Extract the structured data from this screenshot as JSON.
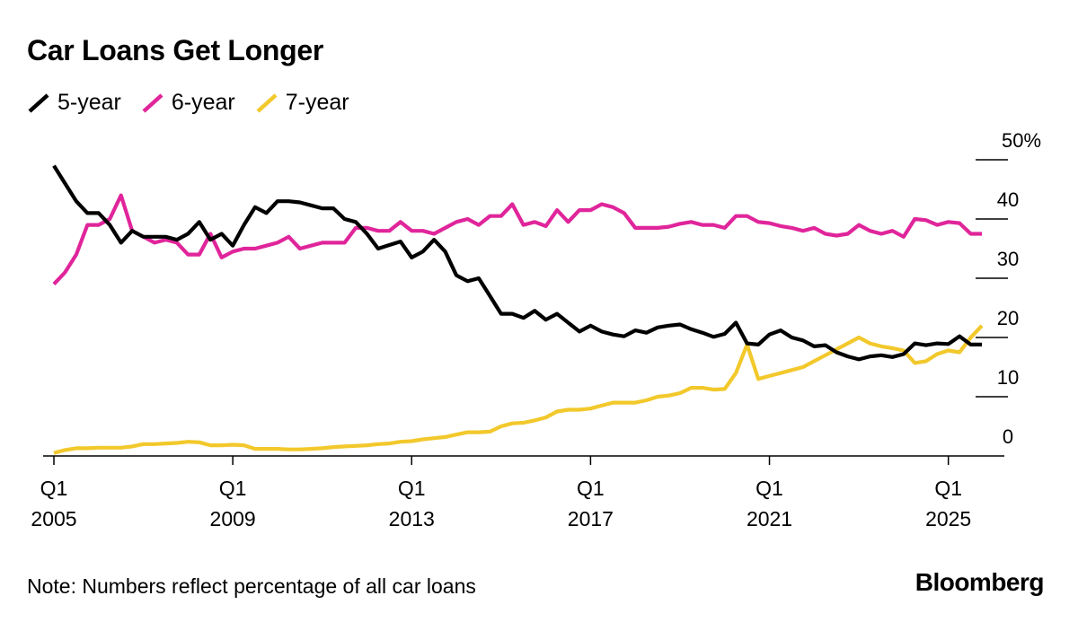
{
  "title": "Car Loans Get Longer",
  "note": "Note: Numbers reflect percentage of all car loans",
  "brand": "Bloomberg",
  "chart_data": {
    "type": "line",
    "title": "Car Loans Get Longer",
    "xlabel": "",
    "ylabel": "",
    "ylim": [
      0,
      50
    ],
    "xlim": [
      2005.0,
      2025.75
    ],
    "y_ticks": [
      0,
      10,
      20,
      30,
      40,
      50
    ],
    "y_tick_labels": [
      "0",
      "10",
      "20",
      "30",
      "40",
      "50%"
    ],
    "x_ticks": [
      {
        "year": 2005,
        "quarter": "Q1",
        "label": "2005"
      },
      {
        "year": 2009,
        "quarter": "Q1",
        "label": "2009"
      },
      {
        "year": 2013,
        "quarter": "Q1",
        "label": "2013"
      },
      {
        "year": 2017,
        "quarter": "Q1",
        "label": "2017"
      },
      {
        "year": 2021,
        "quarter": "Q1",
        "label": "2021"
      },
      {
        "year": 2025,
        "quarter": "Q1",
        "label": "2025"
      }
    ],
    "legend_position": "top-left",
    "series": [
      {
        "name": "5-year",
        "color": "#000000",
        "points": [
          [
            2005.0,
            49
          ],
          [
            2005.25,
            46
          ],
          [
            2005.5,
            43
          ],
          [
            2005.75,
            41
          ],
          [
            2006.0,
            41
          ],
          [
            2006.25,
            39
          ],
          [
            2006.5,
            36
          ],
          [
            2006.75,
            38
          ],
          [
            2007.0,
            37
          ],
          [
            2007.25,
            37
          ],
          [
            2007.5,
            37
          ],
          [
            2007.75,
            36.5
          ],
          [
            2008.0,
            37.5
          ],
          [
            2008.25,
            39.5
          ],
          [
            2008.5,
            36.5
          ],
          [
            2008.75,
            37.5
          ],
          [
            2009.0,
            35.5
          ],
          [
            2009.25,
            39
          ],
          [
            2009.5,
            42
          ],
          [
            2009.75,
            41
          ],
          [
            2010.0,
            43
          ],
          [
            2010.25,
            43
          ],
          [
            2010.5,
            42.8
          ],
          [
            2010.75,
            42.3
          ],
          [
            2011.0,
            41.8
          ],
          [
            2011.25,
            41.8
          ],
          [
            2011.5,
            40
          ],
          [
            2011.75,
            39.5
          ],
          [
            2012.0,
            37.5
          ],
          [
            2012.25,
            35
          ],
          [
            2012.5,
            35.6
          ],
          [
            2012.75,
            36.2
          ],
          [
            2013.0,
            33.5
          ],
          [
            2013.25,
            34.5
          ],
          [
            2013.5,
            36.5
          ],
          [
            2013.75,
            34.5
          ],
          [
            2014.0,
            30.5
          ],
          [
            2014.25,
            29.5
          ],
          [
            2014.5,
            30
          ],
          [
            2014.75,
            27
          ],
          [
            2015.0,
            24
          ],
          [
            2015.25,
            24
          ],
          [
            2015.5,
            23.3
          ],
          [
            2015.75,
            24.5
          ],
          [
            2016.0,
            23
          ],
          [
            2016.25,
            24
          ],
          [
            2016.5,
            22.5
          ],
          [
            2016.75,
            21
          ],
          [
            2017.0,
            22
          ],
          [
            2017.25,
            21
          ],
          [
            2017.5,
            20.5
          ],
          [
            2017.75,
            20.2
          ],
          [
            2018.0,
            21.2
          ],
          [
            2018.25,
            20.8
          ],
          [
            2018.5,
            21.7
          ],
          [
            2018.75,
            22
          ],
          [
            2019.0,
            22.2
          ],
          [
            2019.25,
            21.4
          ],
          [
            2019.5,
            20.8
          ],
          [
            2019.75,
            20.1
          ],
          [
            2020.0,
            20.6
          ],
          [
            2020.25,
            22.5
          ],
          [
            2020.5,
            19
          ],
          [
            2020.75,
            18.8
          ],
          [
            2021.0,
            20.5
          ],
          [
            2021.25,
            21.2
          ],
          [
            2021.5,
            20
          ],
          [
            2021.75,
            19.5
          ],
          [
            2022.0,
            18.5
          ],
          [
            2022.25,
            18.7
          ],
          [
            2022.5,
            17.5
          ],
          [
            2022.75,
            16.8
          ],
          [
            2023.0,
            16.3
          ],
          [
            2023.25,
            16.8
          ],
          [
            2023.5,
            17
          ],
          [
            2023.75,
            16.7
          ],
          [
            2024.0,
            17.2
          ],
          [
            2024.25,
            19
          ],
          [
            2024.5,
            18.7
          ],
          [
            2024.75,
            19
          ],
          [
            2025.0,
            18.9
          ],
          [
            2025.25,
            20.2
          ],
          [
            2025.5,
            18.8
          ],
          [
            2025.75,
            18.8
          ]
        ]
      },
      {
        "name": "6-year",
        "color": "#e0259b",
        "points": [
          [
            2005.0,
            29
          ],
          [
            2005.25,
            31
          ],
          [
            2005.5,
            34
          ],
          [
            2005.75,
            39
          ],
          [
            2006.0,
            39
          ],
          [
            2006.25,
            40
          ],
          [
            2006.5,
            44
          ],
          [
            2006.75,
            38
          ],
          [
            2007.0,
            37
          ],
          [
            2007.25,
            36
          ],
          [
            2007.5,
            36.5
          ],
          [
            2007.75,
            36
          ],
          [
            2008.0,
            34
          ],
          [
            2008.25,
            34
          ],
          [
            2008.5,
            37.5
          ],
          [
            2008.75,
            33.5
          ],
          [
            2009.0,
            34.5
          ],
          [
            2009.25,
            35
          ],
          [
            2009.5,
            35
          ],
          [
            2009.75,
            35.5
          ],
          [
            2010.0,
            36
          ],
          [
            2010.25,
            37
          ],
          [
            2010.5,
            35
          ],
          [
            2010.75,
            35.5
          ],
          [
            2011.0,
            36
          ],
          [
            2011.25,
            36
          ],
          [
            2011.5,
            36
          ],
          [
            2011.75,
            38.5
          ],
          [
            2012.0,
            38.5
          ],
          [
            2012.25,
            38
          ],
          [
            2012.5,
            38
          ],
          [
            2012.75,
            39.5
          ],
          [
            2013.0,
            38
          ],
          [
            2013.25,
            38
          ],
          [
            2013.5,
            37.5
          ],
          [
            2013.75,
            38.5
          ],
          [
            2014.0,
            39.5
          ],
          [
            2014.25,
            40
          ],
          [
            2014.5,
            39
          ],
          [
            2014.75,
            40.5
          ],
          [
            2015.0,
            40.5
          ],
          [
            2015.25,
            42.5
          ],
          [
            2015.5,
            39
          ],
          [
            2015.75,
            39.5
          ],
          [
            2016.0,
            38.8
          ],
          [
            2016.25,
            41.5
          ],
          [
            2016.5,
            39.5
          ],
          [
            2016.75,
            41.5
          ],
          [
            2017.0,
            41.5
          ],
          [
            2017.25,
            42.5
          ],
          [
            2017.5,
            42
          ],
          [
            2017.75,
            41
          ],
          [
            2018.0,
            38.5
          ],
          [
            2018.25,
            38.5
          ],
          [
            2018.5,
            38.5
          ],
          [
            2018.75,
            38.7
          ],
          [
            2019.0,
            39.2
          ],
          [
            2019.25,
            39.5
          ],
          [
            2019.5,
            39
          ],
          [
            2019.75,
            39
          ],
          [
            2020.0,
            38.5
          ],
          [
            2020.25,
            40.5
          ],
          [
            2020.5,
            40.5
          ],
          [
            2020.75,
            39.5
          ],
          [
            2021.0,
            39.3
          ],
          [
            2021.25,
            38.8
          ],
          [
            2021.5,
            38.5
          ],
          [
            2021.75,
            38
          ],
          [
            2022.0,
            38.5
          ],
          [
            2022.25,
            37.5
          ],
          [
            2022.5,
            37.2
          ],
          [
            2022.75,
            37.5
          ],
          [
            2023.0,
            39
          ],
          [
            2023.25,
            38
          ],
          [
            2023.5,
            37.5
          ],
          [
            2023.75,
            38
          ],
          [
            2024.0,
            37
          ],
          [
            2024.25,
            40
          ],
          [
            2024.5,
            39.8
          ],
          [
            2024.75,
            39
          ],
          [
            2025.0,
            39.5
          ],
          [
            2025.25,
            39.3
          ],
          [
            2025.5,
            37.5
          ],
          [
            2025.75,
            37.5
          ]
        ]
      },
      {
        "name": "7-year",
        "color": "#f2c82b",
        "points": [
          [
            2005.0,
            0.5
          ],
          [
            2005.25,
            1
          ],
          [
            2005.5,
            1.3
          ],
          [
            2005.75,
            1.3
          ],
          [
            2006.0,
            1.4
          ],
          [
            2006.25,
            1.4
          ],
          [
            2006.5,
            1.4
          ],
          [
            2006.75,
            1.6
          ],
          [
            2007.0,
            2
          ],
          [
            2007.25,
            2
          ],
          [
            2007.5,
            2.1
          ],
          [
            2007.75,
            2.2
          ],
          [
            2008.0,
            2.4
          ],
          [
            2008.25,
            2.3
          ],
          [
            2008.5,
            1.8
          ],
          [
            2008.75,
            1.8
          ],
          [
            2009.0,
            1.9
          ],
          [
            2009.25,
            1.8
          ],
          [
            2009.5,
            1.2
          ],
          [
            2009.75,
            1.2
          ],
          [
            2010.0,
            1.2
          ],
          [
            2010.25,
            1.1
          ],
          [
            2010.5,
            1.1
          ],
          [
            2010.75,
            1.2
          ],
          [
            2011.0,
            1.3
          ],
          [
            2011.25,
            1.5
          ],
          [
            2011.5,
            1.6
          ],
          [
            2011.75,
            1.7
          ],
          [
            2012.0,
            1.8
          ],
          [
            2012.25,
            2
          ],
          [
            2012.5,
            2.1
          ],
          [
            2012.75,
            2.4
          ],
          [
            2013.0,
            2.5
          ],
          [
            2013.25,
            2.8
          ],
          [
            2013.5,
            3
          ],
          [
            2013.75,
            3.2
          ],
          [
            2014.0,
            3.6
          ],
          [
            2014.25,
            4
          ],
          [
            2014.5,
            4
          ],
          [
            2014.75,
            4.1
          ],
          [
            2015.0,
            5
          ],
          [
            2015.25,
            5.5
          ],
          [
            2015.5,
            5.6
          ],
          [
            2015.75,
            6
          ],
          [
            2016.0,
            6.5
          ],
          [
            2016.25,
            7.5
          ],
          [
            2016.5,
            7.8
          ],
          [
            2016.75,
            7.8
          ],
          [
            2017.0,
            8
          ],
          [
            2017.25,
            8.5
          ],
          [
            2017.5,
            9
          ],
          [
            2017.75,
            9
          ],
          [
            2018.0,
            9
          ],
          [
            2018.25,
            9.4
          ],
          [
            2018.5,
            10
          ],
          [
            2018.75,
            10.2
          ],
          [
            2019.0,
            10.6
          ],
          [
            2019.25,
            11.5
          ],
          [
            2019.5,
            11.5
          ],
          [
            2019.75,
            11.2
          ],
          [
            2020.0,
            11.3
          ],
          [
            2020.25,
            14
          ],
          [
            2020.5,
            18.8
          ],
          [
            2020.75,
            13
          ],
          [
            2021.0,
            13.5
          ],
          [
            2021.25,
            14
          ],
          [
            2021.5,
            14.5
          ],
          [
            2021.75,
            15
          ],
          [
            2022.0,
            16
          ],
          [
            2022.25,
            17
          ],
          [
            2022.5,
            18
          ],
          [
            2022.75,
            19
          ],
          [
            2023.0,
            20
          ],
          [
            2023.25,
            19
          ],
          [
            2023.5,
            18.5
          ],
          [
            2023.75,
            18.2
          ],
          [
            2024.0,
            17.8
          ],
          [
            2024.25,
            15.7
          ],
          [
            2024.5,
            16
          ],
          [
            2024.75,
            17.2
          ],
          [
            2025.0,
            17.8
          ],
          [
            2025.25,
            17.5
          ],
          [
            2025.5,
            20
          ],
          [
            2025.75,
            22
          ]
        ]
      }
    ]
  }
}
